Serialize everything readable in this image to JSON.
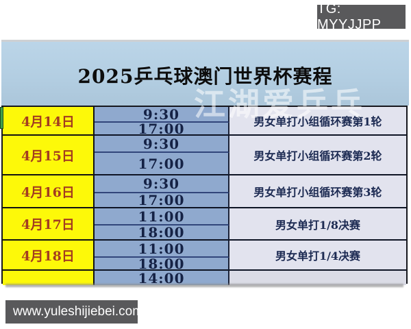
{
  "tg_badge": {
    "label": "TG: MYYJJPP"
  },
  "site_badge": {
    "label": "www.yuleshijiebei.com"
  },
  "header": {
    "title": "2025乒乓球澳门世界杯赛程"
  },
  "watermark": {
    "text": "江湖爱乒乓"
  },
  "colors": {
    "header_blue": "#b3cee2",
    "time_column_blue": "#8fa9ce",
    "event_column_lavender": "#e2e3ee",
    "date_column_yellow": "#fdf909",
    "date_text": "#a33d20",
    "time_text": "#152245",
    "badge_gray": "#59595b",
    "green_accent": "#3f9f4c"
  },
  "table": {
    "columns": [
      "date",
      "time",
      "event"
    ],
    "groups": [
      {
        "date": "4月14日",
        "times": [
          "9:30",
          "17:00"
        ],
        "event": "男女单打小组循环赛第1轮"
      },
      {
        "date": "4月15日",
        "times": [
          "9:30",
          "17:00"
        ],
        "event": "男女单打小组循环赛第2轮"
      },
      {
        "date": "4月16日",
        "times": [
          "9:30",
          "17:00"
        ],
        "event": "男女单打小组循环赛第3轮"
      },
      {
        "date": "4月17日",
        "times": [
          "11:00",
          "18:00"
        ],
        "event": "男女单打1/8决赛"
      },
      {
        "date": "4月18日",
        "times": [
          "11:00",
          "18:00"
        ],
        "event": "男女单打1/4决赛"
      },
      {
        "date": "",
        "times": [
          "14:00"
        ],
        "event": ""
      }
    ]
  }
}
